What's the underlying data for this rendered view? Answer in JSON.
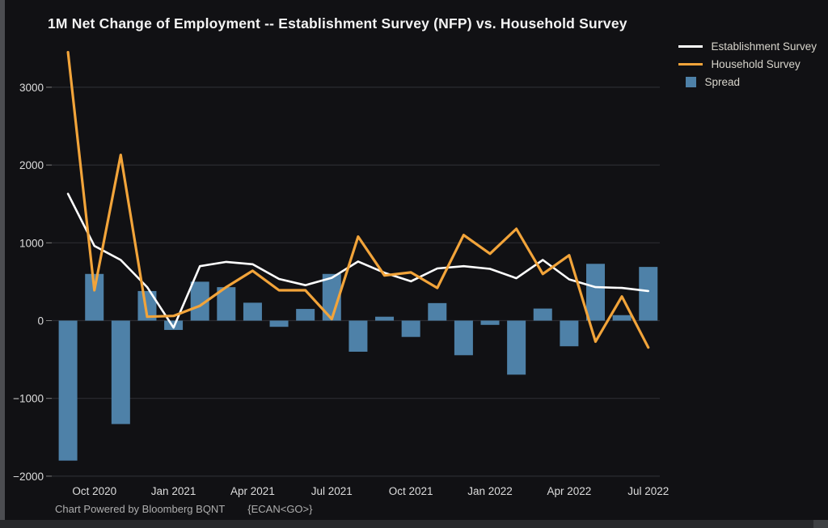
{
  "title": "1M Net Change of Employment -- Establishment Survey (NFP) vs. Household Survey",
  "legend": [
    {
      "label": "Establishment Survey",
      "type": "line",
      "color": "#ffffff"
    },
    {
      "label": "Household Survey",
      "type": "line",
      "color": "#f2a43a"
    },
    {
      "label": "Spread",
      "type": "box",
      "color": "#4e81a8"
    }
  ],
  "footer": {
    "powered": "Chart Powered by Bloomberg BQNT",
    "command": "{ECAN<GO>}"
  },
  "axes": {
    "y_tick_labels": [
      "3000",
      "2000",
      "1000",
      "0",
      "−1000",
      "−2000"
    ],
    "y_tick_values": [
      3000,
      2000,
      1000,
      0,
      -1000,
      -2000
    ],
    "x_tick_labels": [
      "Oct 2020",
      "Jan 2021",
      "Apr 2021",
      "Jul 2021",
      "Oct 2021",
      "Jan 2022",
      "Apr 2022",
      "Jul 2022"
    ]
  },
  "chart_data": {
    "type": "combo (bar + 2 lines)",
    "title": "1M Net Change of Employment -- Establishment Survey (NFP) vs. Household Survey",
    "categories": [
      "Sep 2020",
      "Oct 2020",
      "Nov 2020",
      "Dec 2020",
      "Jan 2021",
      "Feb 2021",
      "Mar 2021",
      "Apr 2021",
      "May 2021",
      "Jun 2021",
      "Jul 2021",
      "Aug 2021",
      "Sep 2021",
      "Oct 2021",
      "Nov 2021",
      "Dec 2021",
      "Jan 2022",
      "Feb 2022",
      "Mar 2022",
      "Apr 2022",
      "May 2022",
      "Jun 2022",
      "Jul 2022"
    ],
    "series": [
      {
        "name": "Establishment Survey",
        "type": "line",
        "color": "#ffffff",
        "values": [
          1630,
          960,
          780,
          430,
          -90,
          700,
          755,
          725,
          535,
          455,
          550,
          760,
          615,
          505,
          670,
          700,
          665,
          545,
          780,
          530,
          430,
          420,
          380
        ]
      },
      {
        "name": "Household Survey",
        "type": "line",
        "color": "#f2a43a",
        "values": [
          3450,
          390,
          2130,
          50,
          60,
          190,
          430,
          640,
          390,
          390,
          20,
          1080,
          580,
          620,
          420,
          1100,
          860,
          1180,
          600,
          840,
          -270,
          310,
          -345
        ]
      },
      {
        "name": "Spread",
        "type": "bar",
        "color": "#4e81a8",
        "values": [
          -1800,
          600,
          -1330,
          380,
          -120,
          500,
          430,
          230,
          -80,
          150,
          600,
          -400,
          50,
          -210,
          225,
          -445,
          -55,
          -695,
          155,
          -330,
          730,
          70,
          690
        ]
      }
    ],
    "xlabel": "",
    "ylabel": "",
    "ylim": [
      -2100,
      3590
    ],
    "grid": "horizontal gridlines at every 1000",
    "legend_position": "top-right",
    "x_tick_step": "every 3rd month, labeled Oct 2020 through Jul 2022"
  }
}
